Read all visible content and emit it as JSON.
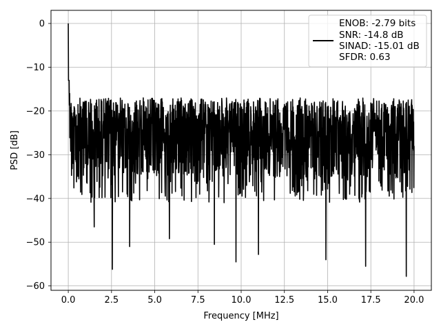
{
  "chart_data": {
    "type": "line",
    "title": "",
    "xlabel": "Frequency [MHz]",
    "ylabel": "PSD [dB]",
    "xlim": [
      -1.0,
      21.0
    ],
    "ylim": [
      -61.0,
      3.0
    ],
    "xticks": [
      0.0,
      2.5,
      5.0,
      7.5,
      10.0,
      12.5,
      15.0,
      17.5,
      20.0
    ],
    "xtick_labels": [
      "0.0",
      "2.5",
      "5.0",
      "7.5",
      "10.0",
      "12.5",
      "15.0",
      "17.5",
      "20.0"
    ],
    "yticks": [
      0,
      -10,
      -20,
      -30,
      -40,
      -50,
      -60
    ],
    "ytick_labels": [
      "0",
      "−10",
      "−20",
      "−30",
      "−40",
      "−50",
      "−60"
    ],
    "grid": true,
    "legend_position": "top-right",
    "series": [
      {
        "name": "",
        "color": "#000000",
        "x_range_mhz": [
          0.0,
          20.0
        ],
        "noise_floor_band_db": [
          -38.0,
          -14.0
        ],
        "notable_points": [
          {
            "x": 0.0,
            "y": 0.0
          },
          {
            "x": 0.08,
            "y": -16.0
          },
          {
            "x": 0.2,
            "y": -23.0
          },
          {
            "x": 0.3,
            "y": -32.0
          },
          {
            "x": 1.5,
            "y": -46.5
          },
          {
            "x": 2.55,
            "y": -56.2
          },
          {
            "x": 3.55,
            "y": -51.0
          },
          {
            "x": 5.85,
            "y": -49.2
          },
          {
            "x": 8.45,
            "y": -50.5
          },
          {
            "x": 9.7,
            "y": -54.5
          },
          {
            "x": 11.0,
            "y": -52.8
          },
          {
            "x": 14.9,
            "y": -54.0
          },
          {
            "x": 17.2,
            "y": -55.5
          },
          {
            "x": 19.55,
            "y": -57.8
          },
          {
            "x": 20.0,
            "y": -28.0
          }
        ]
      }
    ],
    "legend_lines": [
      "ENOB: -2.79 bits",
      "SNR: -14.8 dB",
      "SINAD: -15.01 dB",
      "SFDR: 0.63"
    ]
  }
}
